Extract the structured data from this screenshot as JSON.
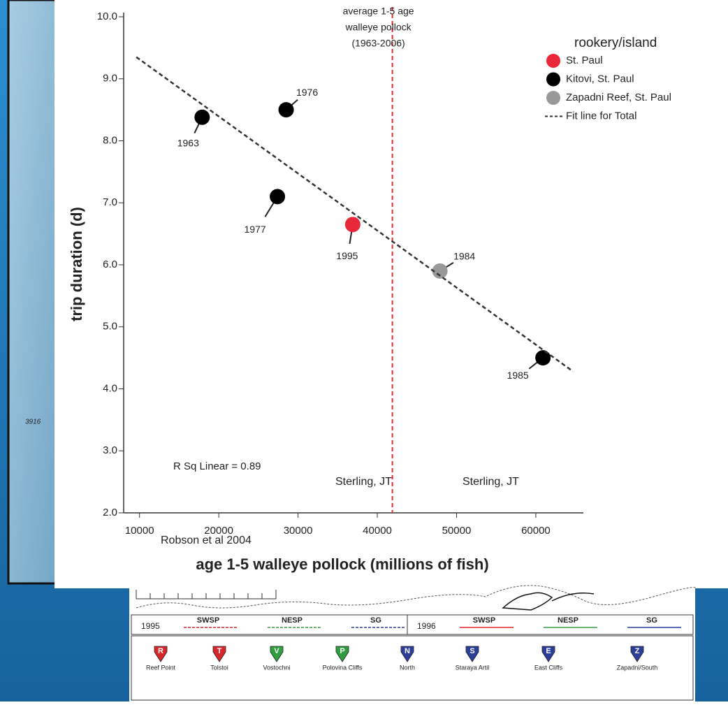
{
  "chart_data": {
    "type": "scatter",
    "xlabel": "age 1-5 walleye pollock (millions of fish)",
    "ylabel": "trip duration (d)",
    "xlim": [
      8000,
      66000
    ],
    "xticks": [
      10000,
      20000,
      30000,
      40000,
      50000,
      60000
    ],
    "ylim": [
      2,
      10
    ],
    "yticks": [
      {
        "value": 2,
        "label": "2.0"
      },
      {
        "value": 3,
        "label": "3.0"
      },
      {
        "value": 4,
        "label": "4.0"
      },
      {
        "value": 5,
        "label": "5.0"
      },
      {
        "value": 6,
        "label": "6.0"
      },
      {
        "value": 7,
        "label": "7.0"
      },
      {
        "value": 8,
        "label": "8.0"
      },
      {
        "value": 9,
        "label": "9.0"
      },
      {
        "value": 10,
        "label": "10.0"
      }
    ],
    "legend_title": "rookery/island",
    "legend": "upper right",
    "series": [
      {
        "name": "St. Paul",
        "color": "#e8283a",
        "x": [
          36900
        ],
        "values": [
          6.65
        ],
        "labels": [
          "1995"
        ]
      },
      {
        "name": "Kitovi, St. Paul",
        "color": "#000000",
        "x": [
          17900,
          28500,
          27400,
          60900
        ],
        "values": [
          8.38,
          8.5,
          7.1,
          4.5
        ],
        "labels": [
          "1963",
          "1976",
          "1977",
          "1985"
        ]
      },
      {
        "name": "Zapadni Reef, St. Paul",
        "color": "#999999",
        "x": [
          47900
        ],
        "values": [
          5.9
        ],
        "labels": [
          "1984"
        ]
      },
      {
        "name": "Fit line for Total",
        "type": "line",
        "dashed": true,
        "color": "#333333",
        "x": [
          9600,
          64700
        ],
        "values": [
          9.35,
          4.28
        ]
      }
    ],
    "reference_line": {
      "x": 41900,
      "color": "#e8283a",
      "label": [
        "average 1-5 age",
        "walleye pollock",
        "(1963-2006)"
      ]
    },
    "annotations": [
      "R Sq Linear = 0.89",
      "Sterling, JT",
      "Sterling, JT",
      "Robson et al 2004"
    ]
  },
  "background": {
    "map_label": "3916"
  },
  "map_legend": {
    "years": [
      "1995",
      "1996"
    ],
    "groups": [
      "SWSP",
      "NESP",
      "SG"
    ],
    "sites": [
      {
        "code": "R",
        "name": "Reef Point"
      },
      {
        "code": "T",
        "name": "Tolstoi"
      },
      {
        "code": "V",
        "name": "Vostochni"
      },
      {
        "code": "P",
        "name": "Polovina Cliffs"
      },
      {
        "code": "N",
        "name": "North"
      },
      {
        "code": "S",
        "name": "Staraya Artil"
      },
      {
        "code": "E",
        "name": "East Cliffs"
      },
      {
        "code": "Z",
        "name": "Zapadni/South"
      }
    ]
  }
}
